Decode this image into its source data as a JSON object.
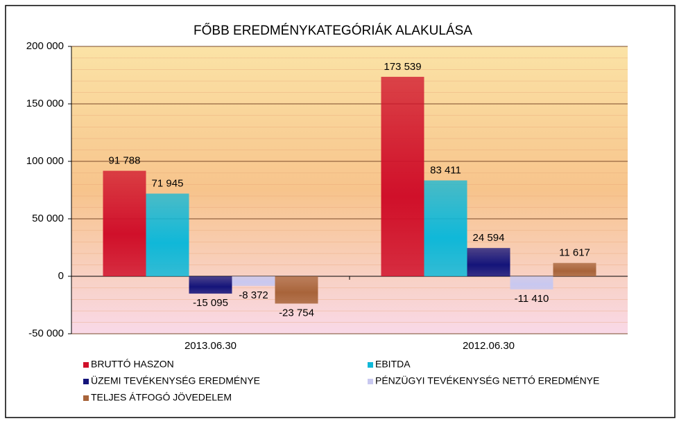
{
  "chart_data": {
    "type": "bar",
    "title": "FŐBB EREDMÉNYKATEGÓRIÁK ALAKULÁSA",
    "categories": [
      "2013.06.30",
      "2012.06.30"
    ],
    "series": [
      {
        "name": "BRUTTÓ HASZON",
        "color": "#d0102a",
        "values": [
          91788,
          173539
        ],
        "value_labels": [
          "91 788",
          "173 539"
        ]
      },
      {
        "name": "EBITDA",
        "color": "#10b8d8",
        "values": [
          71945,
          83411
        ],
        "value_labels": [
          "71 945",
          "83 411"
        ]
      },
      {
        "name": "ÜZEMI TEVÉKENYSÉG EREDMÉNYE",
        "color": "#14147a",
        "values": [
          -15095,
          24594
        ],
        "value_labels": [
          "-15 095",
          "24 594"
        ]
      },
      {
        "name": "PÉNZÜGYI TEVÉKENYSÉG NETTÓ EREDMÉNYE",
        "color": "#c8c8f0",
        "values": [
          -8372,
          -11410
        ],
        "value_labels": [
          "-8 372",
          "-11 410"
        ]
      },
      {
        "name": "TELJES ÁTFOGÓ JÖVEDELEM",
        "color": "#a8643a",
        "values": [
          -23754,
          11617
        ],
        "value_labels": [
          "-23 754",
          "11 617"
        ]
      }
    ],
    "ylim": [
      -50000,
      200000
    ],
    "yticks": [
      {
        "value": -50000,
        "label": "-50 000"
      },
      0,
      {
        "value": 50000,
        "label": "50 000"
      },
      {
        "value": 100000,
        "label": "100 000"
      },
      {
        "value": 150000,
        "label": "150 000"
      },
      {
        "value": 200000,
        "label": "200 000"
      }
    ],
    "grid": true
  }
}
